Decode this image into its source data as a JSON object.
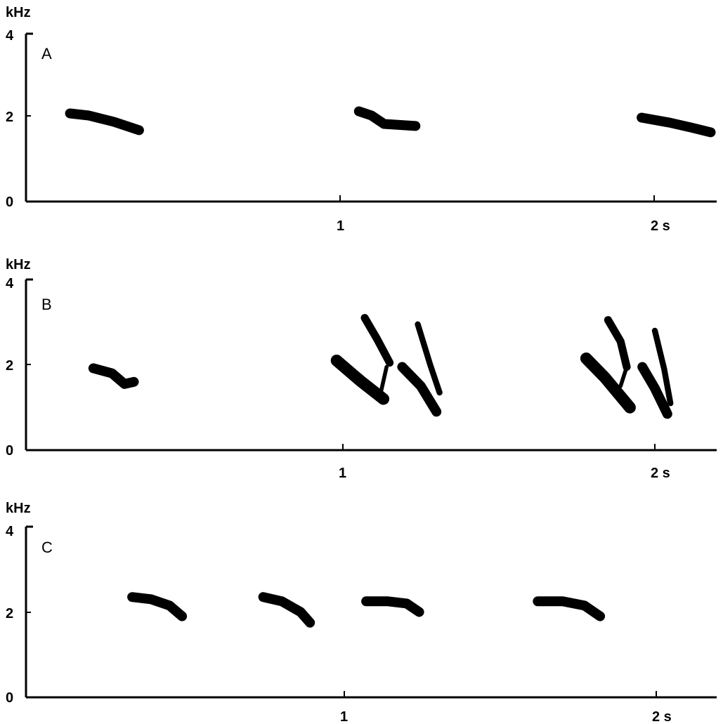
{
  "chart_data": [
    {
      "type": "scatter",
      "panel": "A",
      "ylabel": "kHz",
      "xunit": "s",
      "ylim": [
        0,
        4
      ],
      "xlim": [
        0,
        2.2
      ],
      "yticks": [
        "0",
        "2",
        "4"
      ],
      "xticks": [
        {
          "value": 1,
          "label": "1"
        },
        {
          "value": 2,
          "label": "2 s"
        }
      ],
      "syllables": [
        {
          "t": [
            0.14,
            0.2,
            0.28,
            0.36
          ],
          "f": [
            2.1,
            2.05,
            1.9,
            1.7
          ],
          "w": 1.0
        },
        {
          "t": [
            1.06,
            1.1,
            1.14,
            1.24
          ],
          "f": [
            2.15,
            2.05,
            1.85,
            1.8
          ],
          "w": 1.0
        },
        {
          "t": [
            1.96,
            2.05,
            2.12,
            2.18
          ],
          "f": [
            2.0,
            1.88,
            1.76,
            1.65
          ],
          "w": 1.0
        }
      ]
    },
    {
      "type": "scatter",
      "panel": "B",
      "ylabel": "kHz",
      "xunit": "s",
      "ylim": [
        0,
        4
      ],
      "xlim": [
        0,
        2.2
      ],
      "yticks": [
        "0",
        "2",
        "4"
      ],
      "xticks": [
        {
          "value": 1,
          "label": "1"
        },
        {
          "value": 2,
          "label": "2 s"
        }
      ],
      "syllables": [
        {
          "t": [
            0.2,
            0.26,
            0.3,
            0.33
          ],
          "f": [
            1.92,
            1.8,
            1.55,
            1.6
          ],
          "w": 1.0
        },
        {
          "t": [
            0.98,
            1.06,
            1.13
          ],
          "f": [
            2.1,
            1.6,
            1.2
          ],
          "w": 1.2
        },
        {
          "t": [
            1.07,
            1.11,
            1.15
          ],
          "f": [
            3.1,
            2.6,
            2.05
          ],
          "w": 0.8
        },
        {
          "t": [
            1.12,
            1.14
          ],
          "f": [
            1.3,
            1.95
          ],
          "w": 0.4
        },
        {
          "t": [
            1.19,
            1.25,
            1.3
          ],
          "f": [
            1.95,
            1.5,
            0.9
          ],
          "w": 1.0
        },
        {
          "t": [
            1.24,
            1.28,
            1.31
          ],
          "f": [
            2.95,
            2.0,
            1.35
          ],
          "w": 0.6
        },
        {
          "t": [
            1.78,
            1.84,
            1.92
          ],
          "f": [
            2.15,
            1.7,
            1.0
          ],
          "w": 1.2
        },
        {
          "t": [
            1.85,
            1.89,
            1.91
          ],
          "f": [
            3.05,
            2.55,
            1.95
          ],
          "w": 0.8
        },
        {
          "t": [
            1.89,
            1.91
          ],
          "f": [
            1.5,
            1.95
          ],
          "w": 0.4
        },
        {
          "t": [
            1.96,
            2.0,
            2.04
          ],
          "f": [
            1.95,
            1.45,
            0.85
          ],
          "w": 1.0
        },
        {
          "t": [
            2.0,
            2.03,
            2.05
          ],
          "f": [
            2.8,
            1.9,
            1.1
          ],
          "w": 0.6
        }
      ]
    },
    {
      "type": "scatter",
      "panel": "C",
      "ylabel": "kHz",
      "xunit": "s",
      "ylim": [
        0,
        4
      ],
      "xlim": [
        0,
        2.2
      ],
      "yticks": [
        "0",
        "2",
        "4"
      ],
      "xticks": [
        {
          "value": 1,
          "label": "1"
        },
        {
          "value": 2,
          "label": "2 s"
        }
      ],
      "syllables": [
        {
          "t": [
            0.32,
            0.38,
            0.44,
            0.48
          ],
          "f": [
            2.35,
            2.3,
            2.15,
            1.9
          ],
          "w": 1.0
        },
        {
          "t": [
            0.74,
            0.8,
            0.86,
            0.89
          ],
          "f": [
            2.35,
            2.25,
            2.0,
            1.75
          ],
          "w": 1.0
        },
        {
          "t": [
            1.07,
            1.14,
            1.2,
            1.24
          ],
          "f": [
            2.25,
            2.25,
            2.2,
            2.0
          ],
          "w": 1.0
        },
        {
          "t": [
            1.62,
            1.7,
            1.77,
            1.82
          ],
          "f": [
            2.25,
            2.25,
            2.15,
            1.9
          ],
          "w": 1.0
        }
      ]
    }
  ]
}
